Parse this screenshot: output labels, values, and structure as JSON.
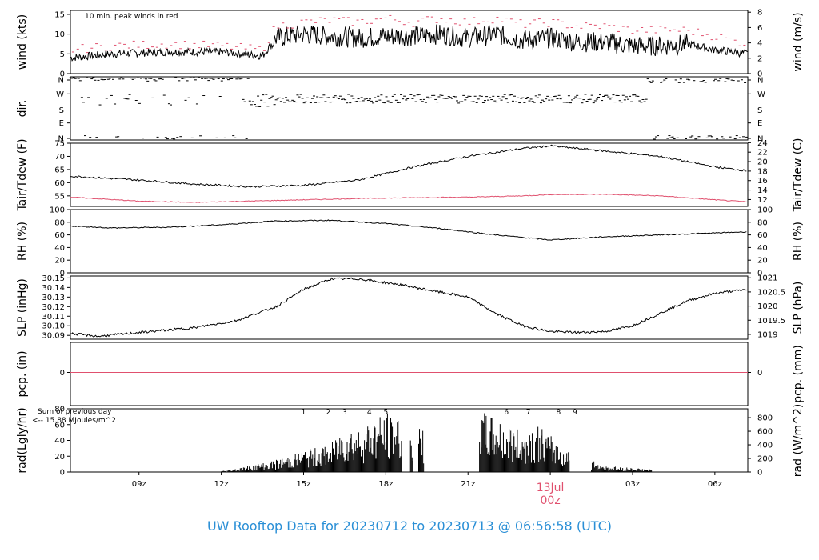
{
  "footer": "UW Rooftop Data for 20230712  to  20230713 @ 06:56:58  (UTC)",
  "colors": {
    "line": "#000000",
    "peak": "#e0506e",
    "footer": "#2a8fd6",
    "annot": "#b030d0"
  },
  "chart_data": [
    {
      "type": "line",
      "ylabel": "wind (kts)",
      "ylabel_right": "wind (m/s)",
      "ylim": [
        0,
        16
      ],
      "yticks_left": [
        "0",
        "5",
        "10",
        "15"
      ],
      "yticks_right": [
        "0",
        "2",
        "4",
        "6",
        "8"
      ],
      "annotation": "10 min. peak winds in red",
      "series": [
        {
          "x_hours": [
            6.5,
            8,
            10,
            12,
            13.5,
            14,
            15,
            16,
            17,
            18,
            19,
            20,
            21,
            22,
            23,
            24,
            25,
            26,
            27,
            28,
            29,
            30,
            31.2
          ],
          "values": [
            4,
            5,
            5.5,
            5.5,
            4.5,
            9,
            10,
            9.5,
            9,
            9.5,
            9.5,
            10,
            9,
            10,
            8.5,
            9,
            8,
            8,
            7,
            7,
            7.5,
            6,
            5
          ]
        },
        {
          "x_hours": [
            6.5,
            8,
            10,
            12,
            13.5,
            14,
            15,
            16,
            17,
            18,
            19,
            20,
            21,
            22,
            23,
            24,
            25,
            26,
            27,
            28,
            29,
            30,
            31.2
          ],
          "values": [
            6,
            7,
            7.5,
            7,
            6,
            12,
            13,
            13.5,
            13,
            14,
            13,
            14,
            13,
            14,
            12.5,
            13,
            12,
            12,
            11,
            11,
            11,
            9.5,
            7.5
          ]
        }
      ]
    },
    {
      "type": "scatter",
      "ylabel": "dir.",
      "yticks_left": [
        "N",
        "E",
        "S",
        "W",
        "N"
      ],
      "yticks_right": [
        "N",
        "E",
        "S",
        "W",
        "N"
      ]
    },
    {
      "type": "line",
      "ylabel": "Tair/Tdew (F)",
      "ylabel_right": "Tair/Tdew (C)",
      "ylim": [
        51,
        75
      ],
      "yticks_left": [
        "55",
        "60",
        "65",
        "70",
        "75"
      ],
      "yticks_right": [
        "12",
        "14",
        "16",
        "18",
        "20",
        "22",
        "24"
      ],
      "series": [
        {
          "x_hours": [
            6.5,
            9,
            11,
            13,
            15,
            17,
            19,
            21,
            23,
            24,
            26,
            28,
            30,
            31.2
          ],
          "values": [
            62.5,
            61,
            59.5,
            58.5,
            59,
            61,
            66,
            70,
            73,
            74,
            72,
            70,
            66,
            64.5
          ]
        },
        {
          "x_hours": [
            6.5,
            9,
            11,
            13,
            15,
            17,
            19,
            21,
            23,
            24,
            26,
            28,
            30,
            31.2
          ],
          "values": [
            54.5,
            53,
            52.5,
            53,
            53.5,
            54,
            54.3,
            54.5,
            55,
            55.5,
            55.6,
            55,
            53.5,
            52.7
          ]
        }
      ]
    },
    {
      "type": "line",
      "ylabel": "RH (%)",
      "ylabel_right": "RH (%)",
      "ylim": [
        0,
        100
      ],
      "yticks_left": [
        "0",
        "20",
        "40",
        "60",
        "80",
        "100"
      ],
      "yticks_right": [
        "0",
        "20",
        "40",
        "60",
        "80",
        "100"
      ],
      "series": [
        {
          "x_hours": [
            6.5,
            8,
            10,
            12,
            14,
            16,
            18,
            20,
            22,
            23,
            24,
            26,
            28,
            30,
            31.2
          ],
          "values": [
            74,
            71,
            72,
            76,
            82,
            83,
            78,
            70,
            60,
            56,
            52,
            57,
            60,
            63,
            65
          ]
        }
      ]
    },
    {
      "type": "line",
      "ylabel": "SLP (inHg)",
      "ylabel_right": "SLP (hPa)",
      "ylim": [
        30.086,
        30.152
      ],
      "yticks_left": [
        "30.09",
        "30.10",
        "30.11",
        "30.12",
        "30.13",
        "30.14",
        "30.15"
      ],
      "yticks_right": [
        "1019",
        "1019.5",
        "1020",
        "1020.5",
        "1021"
      ],
      "series": [
        {
          "x_hours": [
            6.5,
            7.5,
            9,
            11,
            12.5,
            14,
            15,
            16,
            17,
            18.5,
            20,
            21,
            22,
            23,
            24,
            25,
            26,
            27,
            28,
            29,
            30,
            31.2
          ],
          "values": [
            30.092,
            30.089,
            30.093,
            30.098,
            30.105,
            30.12,
            30.138,
            30.149,
            30.149,
            30.143,
            30.135,
            30.13,
            30.113,
            30.1,
            30.094,
            30.093,
            30.094,
            30.1,
            30.113,
            30.126,
            30.134,
            30.138
          ]
        }
      ]
    },
    {
      "type": "line",
      "ylabel": "pcp. (in)",
      "ylabel_right": "pcp. (mm)",
      "yticks_left": [
        "0"
      ],
      "yticks_right": [
        "0"
      ],
      "series": [
        {
          "x_hours": [
            6.5,
            31.2
          ],
          "values": [
            0,
            0
          ]
        }
      ]
    },
    {
      "type": "bar",
      "ylabel": "rad(Lgly/hr)",
      "ylabel_right": "rad (W/m^2)",
      "ylim": [
        0,
        80
      ],
      "yticks_left": [
        "0",
        "20",
        "40",
        "60",
        "80"
      ],
      "yticks_right": [
        "0",
        "200",
        "400",
        "600",
        "800"
      ],
      "annotation_lines": [
        "Sum of previous day",
        "<-- 15.88 MJoules/m^2"
      ],
      "marker_labels": [
        "1",
        "2",
        "3",
        "4",
        "5",
        "6",
        "7",
        "8",
        "9"
      ],
      "x_hours": [
        12,
        13,
        14,
        15,
        16,
        16.5,
        17,
        17.5,
        18,
        18.3,
        19,
        21.5,
        22,
        22.5,
        23,
        23.5,
        24,
        24.5,
        26,
        27,
        28
      ],
      "values": [
        1,
        7,
        14,
        25,
        32,
        55,
        50,
        62,
        68,
        72,
        48,
        70,
        62,
        55,
        45,
        58,
        42,
        28,
        7,
        5,
        2
      ],
      "xticks": [
        "09z",
        "12z",
        "15z",
        "18z",
        "21z",
        "13Jul",
        "00z",
        "03z",
        "06z"
      ]
    }
  ]
}
